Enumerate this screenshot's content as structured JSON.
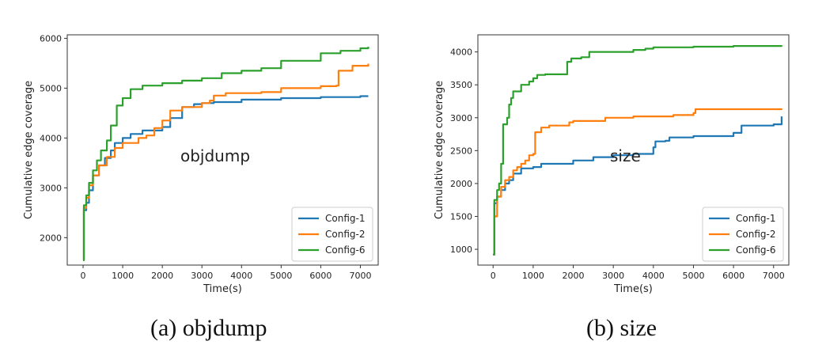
{
  "captions": {
    "a": "(a)  objdump",
    "b": "(b)  size"
  },
  "colors": {
    "Config-1": "#1f77b4",
    "Config-2": "#ff7f0e",
    "Config-6": "#2ca02c"
  },
  "chart_data": [
    {
      "type": "line",
      "annotation": "objdump",
      "xlabel": "Time(s)",
      "ylabel": "Cumulative edge coverage",
      "xlim": [
        -400,
        7450
      ],
      "ylim": [
        1450,
        6070
      ],
      "xticks": [
        0,
        1000,
        2000,
        3000,
        4000,
        5000,
        6000,
        7000
      ],
      "yticks": [
        2000,
        3000,
        4000,
        5000,
        6000
      ],
      "legend": "lower-right",
      "grid": false,
      "series": [
        {
          "name": "Config-1",
          "points": [
            [
              0,
              1550
            ],
            [
              20,
              2550
            ],
            [
              80,
              2700
            ],
            [
              150,
              2950
            ],
            [
              250,
              3250
            ],
            [
              400,
              3450
            ],
            [
              550,
              3600
            ],
            [
              700,
              3750
            ],
            [
              800,
              3900
            ],
            [
              1000,
              4000
            ],
            [
              1200,
              4080
            ],
            [
              1500,
              4150
            ],
            [
              2000,
              4220
            ],
            [
              2200,
              4400
            ],
            [
              2500,
              4620
            ],
            [
              2800,
              4680
            ],
            [
              3000,
              4700
            ],
            [
              3300,
              4720
            ],
            [
              4000,
              4770
            ],
            [
              5000,
              4800
            ],
            [
              6000,
              4820
            ],
            [
              7000,
              4840
            ],
            [
              7200,
              4840
            ]
          ]
        },
        {
          "name": "Config-2",
          "points": [
            [
              0,
              1550
            ],
            [
              20,
              2600
            ],
            [
              80,
              2800
            ],
            [
              150,
              3050
            ],
            [
              250,
              3250
            ],
            [
              400,
              3450
            ],
            [
              600,
              3620
            ],
            [
              800,
              3800
            ],
            [
              1000,
              3900
            ],
            [
              1400,
              4000
            ],
            [
              1600,
              4050
            ],
            [
              1800,
              4200
            ],
            [
              2000,
              4350
            ],
            [
              2200,
              4550
            ],
            [
              2500,
              4620
            ],
            [
              3000,
              4700
            ],
            [
              3200,
              4750
            ],
            [
              3300,
              4850
            ],
            [
              3600,
              4900
            ],
            [
              4000,
              4900
            ],
            [
              4500,
              4920
            ],
            [
              5000,
              5000
            ],
            [
              6000,
              5040
            ],
            [
              6400,
              5050
            ],
            [
              6450,
              5350
            ],
            [
              6800,
              5450
            ],
            [
              7200,
              5490
            ]
          ]
        },
        {
          "name": "Config-6",
          "points": [
            [
              0,
              1550
            ],
            [
              20,
              2650
            ],
            [
              80,
              2850
            ],
            [
              150,
              3100
            ],
            [
              250,
              3350
            ],
            [
              350,
              3550
            ],
            [
              450,
              3750
            ],
            [
              600,
              3950
            ],
            [
              700,
              4250
            ],
            [
              850,
              4650
            ],
            [
              1000,
              4800
            ],
            [
              1200,
              4980
            ],
            [
              1500,
              5050
            ],
            [
              2000,
              5100
            ],
            [
              2500,
              5150
            ],
            [
              3000,
              5200
            ],
            [
              3500,
              5300
            ],
            [
              4000,
              5350
            ],
            [
              4500,
              5400
            ],
            [
              5000,
              5550
            ],
            [
              6000,
              5700
            ],
            [
              6500,
              5750
            ],
            [
              7000,
              5800
            ],
            [
              7200,
              5830
            ]
          ]
        }
      ]
    },
    {
      "type": "line",
      "annotation": "size",
      "xlabel": "Time(s)",
      "ylabel": "Cumulative edge coverage",
      "xlim": [
        -380,
        7380
      ],
      "ylim": [
        760,
        4260
      ],
      "xticks": [
        0,
        1000,
        2000,
        3000,
        4000,
        5000,
        6000,
        7000
      ],
      "yticks": [
        1000,
        1500,
        2000,
        2500,
        3000,
        3500,
        4000
      ],
      "legend": "lower-right",
      "grid": false,
      "series": [
        {
          "name": "Config-1",
          "points": [
            [
              0,
              920
            ],
            [
              30,
              1700
            ],
            [
              100,
              1800
            ],
            [
              200,
              1900
            ],
            [
              300,
              2000
            ],
            [
              400,
              2050
            ],
            [
              500,
              2150
            ],
            [
              700,
              2230
            ],
            [
              1000,
              2250
            ],
            [
              1200,
              2300
            ],
            [
              2000,
              2350
            ],
            [
              2500,
              2400
            ],
            [
              3000,
              2430
            ],
            [
              3500,
              2450
            ],
            [
              4000,
              2550
            ],
            [
              4050,
              2640
            ],
            [
              4300,
              2650
            ],
            [
              4400,
              2700
            ],
            [
              5000,
              2720
            ],
            [
              6000,
              2770
            ],
            [
              6200,
              2880
            ],
            [
              7000,
              2900
            ],
            [
              7150,
              2900
            ],
            [
              7200,
              3020
            ]
          ]
        },
        {
          "name": "Config-2",
          "points": [
            [
              0,
              920
            ],
            [
              30,
              1500
            ],
            [
              100,
              1800
            ],
            [
              200,
              1950
            ],
            [
              300,
              2050
            ],
            [
              400,
              2100
            ],
            [
              500,
              2200
            ],
            [
              600,
              2250
            ],
            [
              700,
              2300
            ],
            [
              800,
              2350
            ],
            [
              900,
              2430
            ],
            [
              1000,
              2450
            ],
            [
              1050,
              2780
            ],
            [
              1200,
              2850
            ],
            [
              1400,
              2880
            ],
            [
              1800,
              2880
            ],
            [
              1900,
              2930
            ],
            [
              2000,
              2950
            ],
            [
              2600,
              2950
            ],
            [
              2800,
              3000
            ],
            [
              3500,
              3020
            ],
            [
              4000,
              3020
            ],
            [
              4500,
              3040
            ],
            [
              5000,
              3070
            ],
            [
              5050,
              3130
            ],
            [
              6000,
              3130
            ],
            [
              7200,
              3140
            ]
          ]
        },
        {
          "name": "Config-6",
          "points": [
            [
              0,
              920
            ],
            [
              30,
              1750
            ],
            [
              100,
              1900
            ],
            [
              150,
              2000
            ],
            [
              200,
              2300
            ],
            [
              250,
              2900
            ],
            [
              350,
              3000
            ],
            [
              400,
              3200
            ],
            [
              450,
              3300
            ],
            [
              500,
              3400
            ],
            [
              700,
              3500
            ],
            [
              900,
              3550
            ],
            [
              1000,
              3600
            ],
            [
              1100,
              3650
            ],
            [
              1300,
              3660
            ],
            [
              1800,
              3660
            ],
            [
              1850,
              3850
            ],
            [
              1950,
              3900
            ],
            [
              2200,
              3920
            ],
            [
              2400,
              4000
            ],
            [
              3000,
              4000
            ],
            [
              3500,
              4030
            ],
            [
              3800,
              4050
            ],
            [
              4000,
              4070
            ],
            [
              5000,
              4080
            ],
            [
              6000,
              4090
            ],
            [
              7200,
              4100
            ]
          ]
        }
      ]
    }
  ]
}
